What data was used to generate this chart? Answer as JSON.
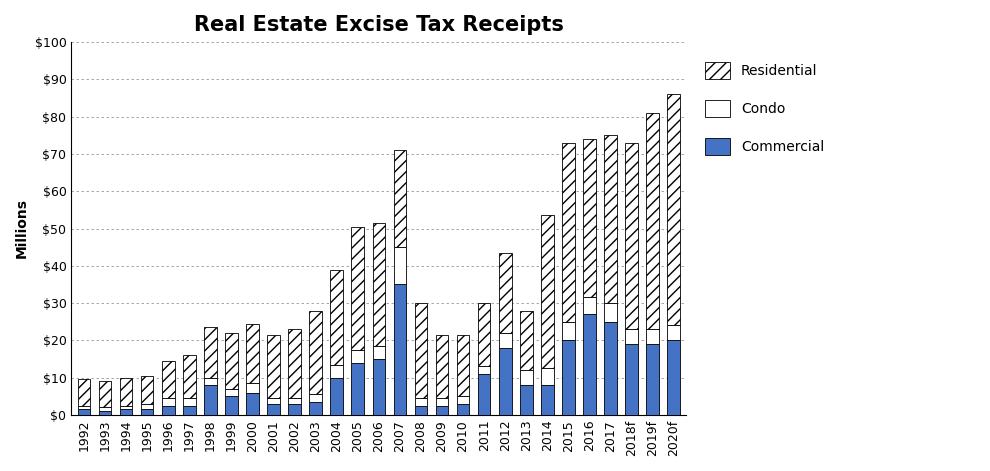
{
  "title": "Real Estate Excise Tax Receipts",
  "ylabel": "Millions",
  "years": [
    "1992",
    "1993",
    "1994",
    "1995",
    "1996",
    "1997",
    "1998",
    "1999",
    "2000",
    "2001",
    "2002",
    "2003",
    "2004",
    "2005",
    "2006",
    "2007",
    "2008",
    "2009",
    "2010",
    "2011",
    "2012",
    "2013",
    "2014",
    "2015",
    "2016",
    "2017",
    "2018f",
    "2019f",
    "2020f"
  ],
  "commercial": [
    1.5,
    1.0,
    1.5,
    1.5,
    2.5,
    2.5,
    8.0,
    5.0,
    6.0,
    3.0,
    3.0,
    3.5,
    10.0,
    14.0,
    15.0,
    35.0,
    2.5,
    2.5,
    3.0,
    11.0,
    18.0,
    8.0,
    8.0,
    20.0,
    27.0,
    25.0,
    19.0,
    19.0,
    20.0
  ],
  "condo": [
    1.0,
    1.0,
    1.0,
    1.5,
    2.0,
    2.0,
    2.0,
    2.0,
    2.5,
    1.5,
    1.5,
    2.0,
    3.5,
    3.5,
    3.5,
    10.0,
    2.0,
    2.0,
    2.0,
    2.0,
    4.0,
    4.0,
    4.5,
    5.0,
    4.5,
    5.0,
    4.0,
    4.0,
    4.0
  ],
  "residential": [
    7.0,
    7.0,
    7.5,
    7.5,
    10.0,
    11.5,
    13.5,
    15.0,
    16.0,
    17.0,
    18.5,
    22.5,
    25.5,
    33.0,
    33.0,
    26.0,
    25.5,
    17.0,
    16.5,
    17.0,
    21.5,
    16.0,
    41.0,
    48.0,
    42.5,
    45.0,
    50.0,
    58.0,
    62.0
  ],
  "commercial_color": "#4472C4",
  "condo_color": "#FFFFFF",
  "residential_hatch": "///",
  "ylim": [
    0,
    100
  ],
  "yticks": [
    0,
    10,
    20,
    30,
    40,
    50,
    60,
    70,
    80,
    90,
    100
  ],
  "ytick_labels": [
    "$0",
    "$10",
    "$20",
    "$30",
    "$40",
    "$50",
    "$60",
    "$70",
    "$80",
    "$90",
    "$100"
  ],
  "grid_color": "#999999",
  "bar_edge_color": "#000000",
  "background_color": "#FFFFFF",
  "title_fontsize": 15,
  "axis_label_fontsize": 10,
  "tick_fontsize": 9
}
